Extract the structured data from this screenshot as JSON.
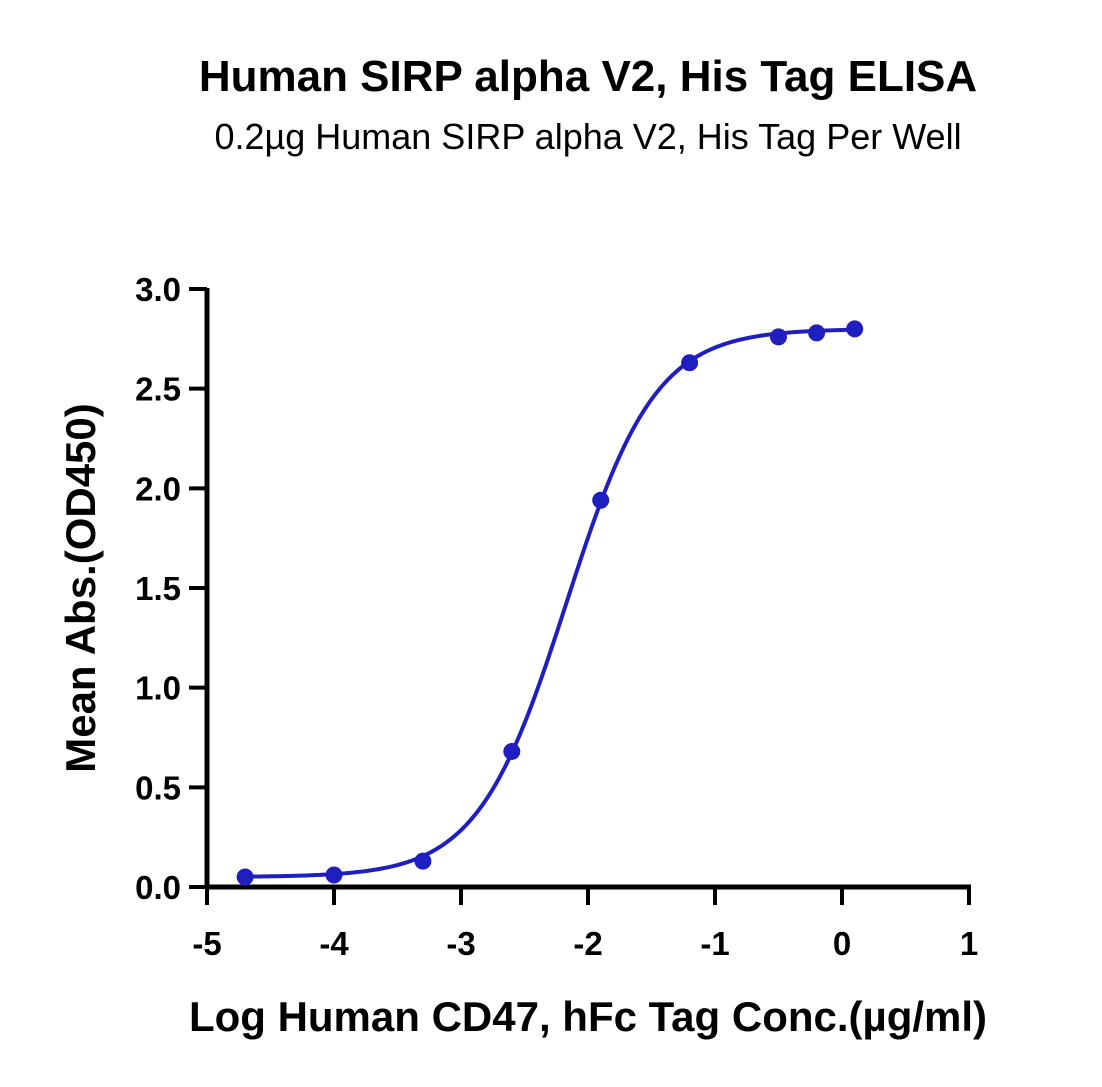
{
  "chart_data": {
    "type": "scatter",
    "title": "Human SIRP alpha V2, His Tag ELISA",
    "subtitle": "0.2µg Human SIRP alpha V2, His Tag Per Well",
    "xlabel": "Log Human CD47, hFc  Tag Conc.(µg/ml)",
    "ylabel": "Mean Abs.(OD450)",
    "xlim": [
      -5,
      1
    ],
    "ylim": [
      0,
      3.0
    ],
    "xticks": [
      -5,
      -4,
      -3,
      -2,
      -1,
      0,
      1
    ],
    "xtick_labels": [
      "-5",
      "-4",
      "-3",
      "-2",
      "-1",
      "0",
      "1"
    ],
    "yticks": [
      0,
      0.5,
      1.0,
      1.5,
      2.0,
      2.5,
      3.0
    ],
    "ytick_labels": [
      "0.0",
      "0.5",
      "1.0",
      "1.5",
      "2.0",
      "2.5",
      "3.0"
    ],
    "grid": false,
    "color": "#1f1fbf",
    "series": [
      {
        "x": [
          -4.7,
          -4.0,
          -3.3,
          -2.6,
          -1.9,
          -1.2,
          -0.5,
          -0.2,
          0.1
        ],
        "y": [
          0.05,
          0.06,
          0.13,
          0.68,
          1.94,
          2.63,
          2.76,
          2.78,
          2.8
        ],
        "fit": "four-parameter logistic curve"
      }
    ]
  }
}
